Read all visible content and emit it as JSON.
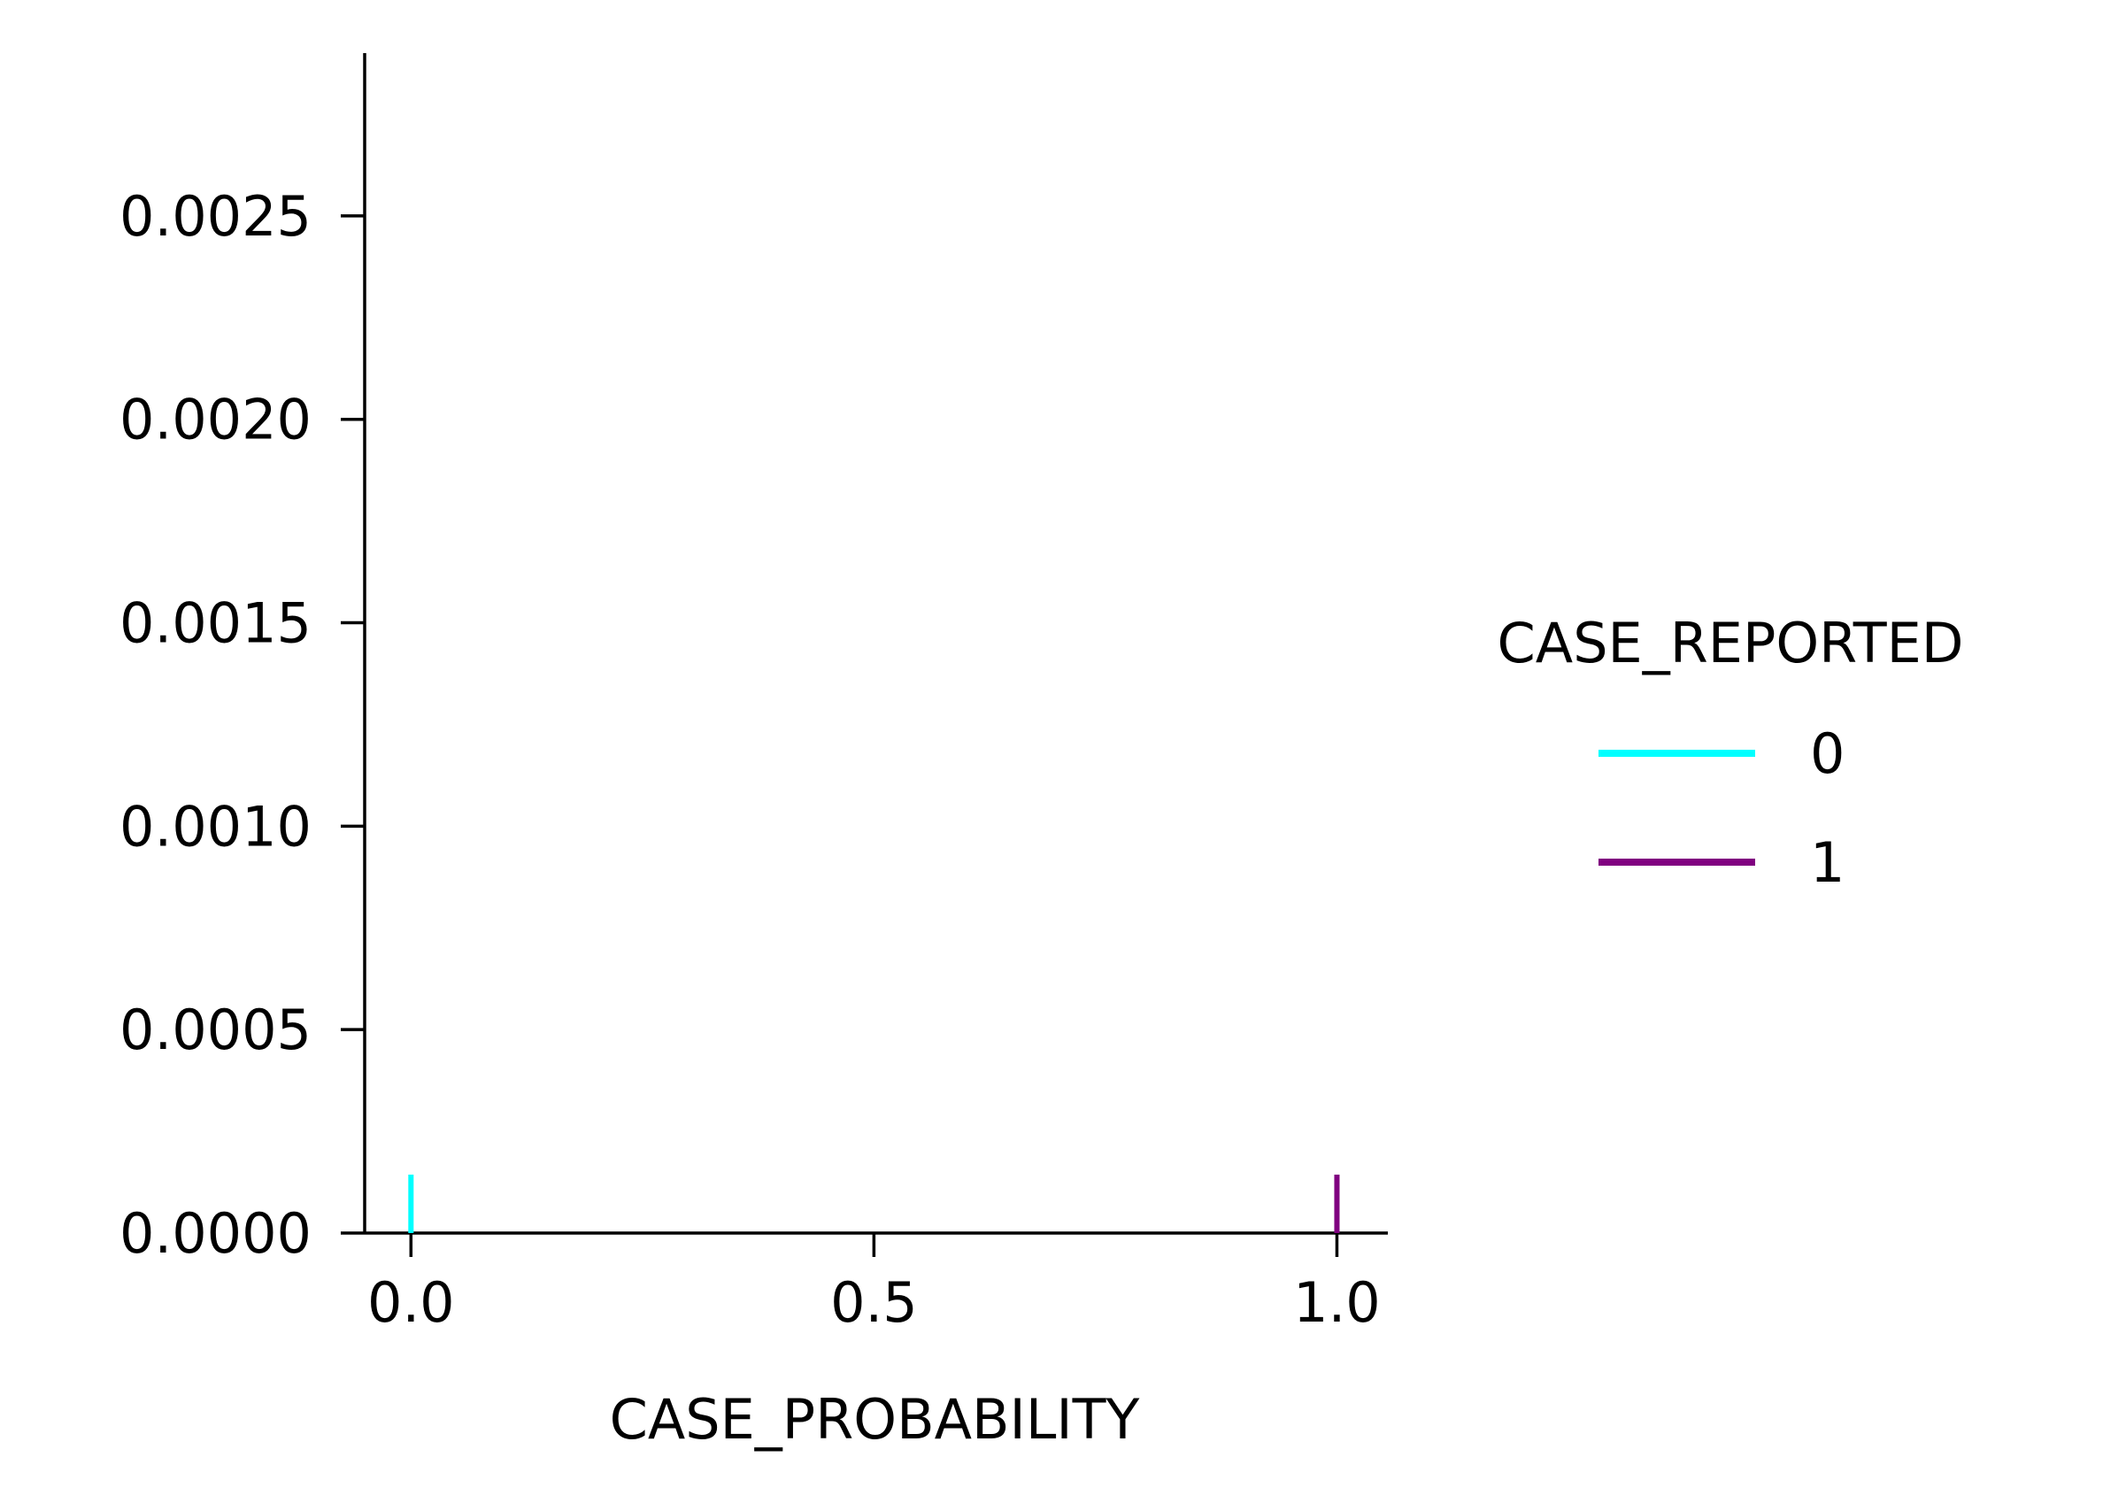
{
  "chart_data": {
    "type": "rug",
    "title": "",
    "xlabel": "CASE_PROBABILITY",
    "ylabel": "",
    "xlim": [
      -0.05,
      1.055
    ],
    "ylim": [
      0,
      0.0029
    ],
    "x_ticks": [
      0.0,
      0.5,
      1.0
    ],
    "x_tick_labels": [
      "0.0",
      "0.5",
      "1.0"
    ],
    "y_ticks": [
      0.0,
      0.0005,
      0.001,
      0.0015,
      0.002,
      0.0025
    ],
    "y_tick_labels": [
      "0.0000",
      "0.0005",
      "0.0010",
      "0.0015",
      "0.0020",
      "0.0025"
    ],
    "grid": false,
    "legend": {
      "title": "CASE_REPORTED",
      "placement": "right-outside"
    },
    "series": [
      {
        "name": "0",
        "color": "#00ffff",
        "x": [
          0.0
        ]
      },
      {
        "name": "1",
        "color": "#800080",
        "x": [
          1.0
        ]
      }
    ]
  }
}
